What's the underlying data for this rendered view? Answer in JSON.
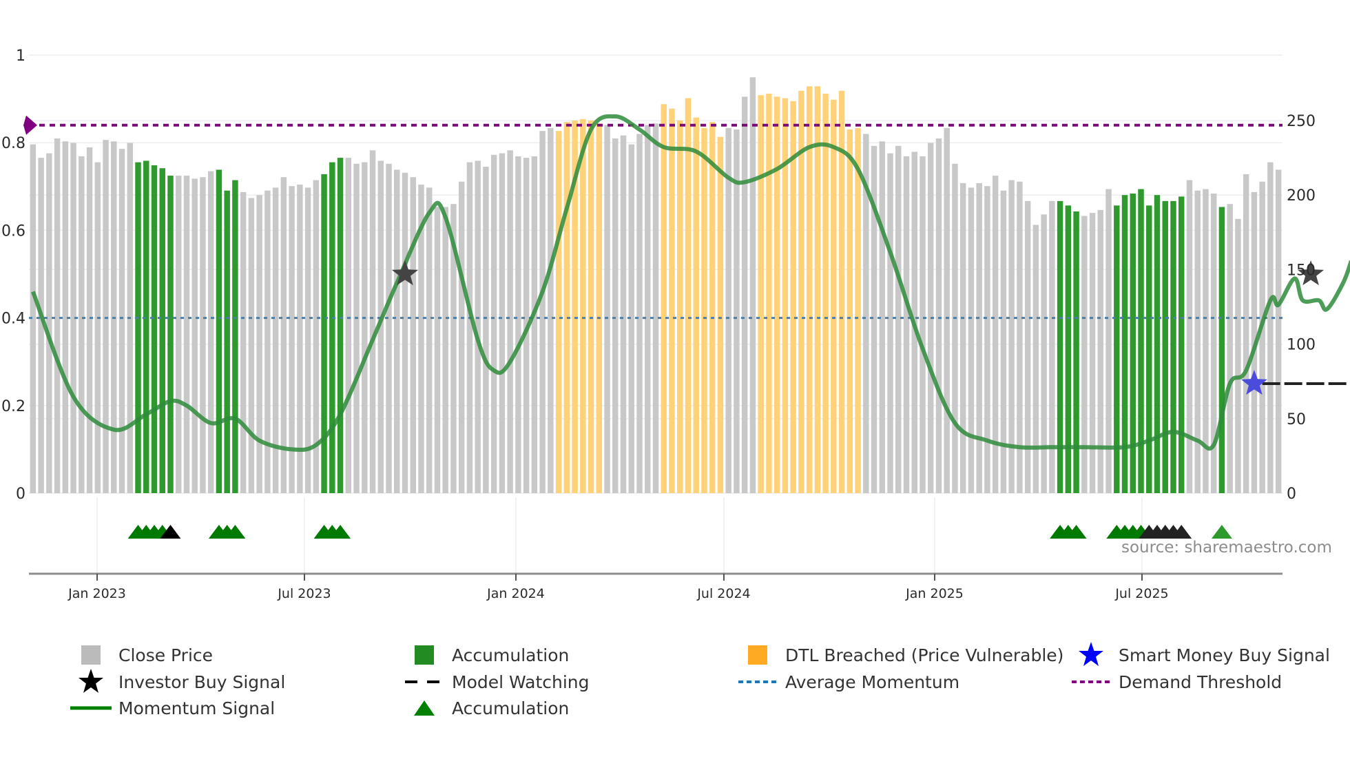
{
  "chart_data": {
    "type": "bar",
    "title": "",
    "xlabel": "",
    "ylabel_left": "",
    "ylabel_right": "",
    "left_axis": {
      "ticks": [
        0,
        0.2,
        0.4,
        0.6,
        0.8,
        1
      ],
      "tick_labels": [
        "0",
        "0.2",
        "0.4",
        "0.6",
        "0.8",
        "1"
      ],
      "range": [
        0,
        1
      ]
    },
    "right_axis": {
      "ticks": [
        0,
        50,
        100,
        150,
        200,
        250
      ],
      "tick_labels": [
        "0",
        "50",
        "100",
        "150",
        "200",
        "250"
      ],
      "range": [
        0,
        270
      ]
    },
    "x_ticks": [
      "Jan 2023",
      "Jul 2023",
      "Jan 2024",
      "Jul 2024",
      "Jan 2025",
      "Jul 2025"
    ],
    "x_range": [
      "Nov 2022",
      "Oct 2025"
    ],
    "grid": true,
    "legend_position": "bottom",
    "close_price_weekly": [
      234,
      225,
      228,
      238,
      236,
      235,
      226,
      232,
      222,
      237,
      236,
      231,
      235,
      222,
      223,
      220,
      218,
      213,
      213,
      213,
      211,
      212,
      216,
      217,
      203,
      210,
      202,
      198,
      200,
      203,
      205,
      212,
      206,
      207,
      205,
      210,
      214,
      222,
      225,
      225,
      221,
      222,
      230,
      223,
      221,
      217,
      215,
      212,
      207,
      205,
      192,
      192,
      194,
      209,
      222,
      223,
      219,
      227,
      228,
      230,
      226,
      225,
      226,
      243,
      245,
      243,
      249,
      250,
      251,
      250,
      248,
      247,
      238,
      240,
      234,
      241,
      247,
      248,
      261,
      258,
      250,
      265,
      252,
      245,
      249,
      239,
      245,
      244,
      266,
      279,
      267,
      268,
      266,
      265,
      263,
      270,
      273,
      273,
      268,
      264,
      270,
      244,
      245,
      241,
      233,
      236,
      228,
      233,
      226,
      229,
      226,
      235,
      238,
      245,
      221,
      208,
      205,
      208,
      206,
      213,
      203,
      210,
      209,
      196,
      180,
      187,
      196,
      196,
      193,
      189,
      186,
      188,
      190,
      204,
      193,
      200,
      201,
      204,
      193,
      200,
      196,
      196,
      199,
      210,
      203,
      204,
      201,
      192,
      194,
      184,
      214,
      202,
      209,
      222,
      217
    ],
    "bar_categories": {
      "accumulation_ranges": [
        [
          13,
          17
        ],
        [
          23,
          25
        ],
        [
          36,
          38
        ],
        [
          127,
          129
        ],
        [
          134,
          142
        ],
        [
          147,
          147
        ]
      ],
      "dtl_breached_ranges": [
        [
          65,
          70
        ],
        [
          78,
          85
        ],
        [
          90,
          102
        ]
      ]
    },
    "momentum_signal": [
      [
        0,
        0.46
      ],
      [
        5,
        0.22
      ],
      [
        10,
        0.145
      ],
      [
        14,
        0.18
      ],
      [
        17,
        0.21
      ],
      [
        19,
        0.2
      ],
      [
        22,
        0.16
      ],
      [
        25,
        0.17
      ],
      [
        28,
        0.12
      ],
      [
        32,
        0.1
      ],
      [
        35,
        0.11
      ],
      [
        38,
        0.18
      ],
      [
        42,
        0.35
      ],
      [
        45,
        0.48
      ],
      [
        49,
        0.64
      ],
      [
        51,
        0.63
      ],
      [
        55,
        0.35
      ],
      [
        57,
        0.28
      ],
      [
        59,
        0.3
      ],
      [
        63,
        0.46
      ],
      [
        66,
        0.65
      ],
      [
        69,
        0.83
      ],
      [
        72,
        0.86
      ],
      [
        75,
        0.83
      ],
      [
        78,
        0.79
      ],
      [
        82,
        0.78
      ],
      [
        86,
        0.72
      ],
      [
        88,
        0.71
      ],
      [
        92,
        0.74
      ],
      [
        96,
        0.79
      ],
      [
        99,
        0.79
      ],
      [
        102,
        0.74
      ],
      [
        106,
        0.55
      ],
      [
        110,
        0.33
      ],
      [
        114,
        0.16
      ],
      [
        118,
        0.12
      ],
      [
        122,
        0.105
      ],
      [
        126,
        0.105
      ],
      [
        130,
        0.105
      ],
      [
        135,
        0.105
      ],
      [
        138,
        0.12
      ],
      [
        141,
        0.14
      ],
      [
        144,
        0.12
      ],
      [
        146,
        0.11
      ],
      [
        148,
        0.25
      ],
      [
        150,
        0.28
      ],
      [
        153,
        0.44
      ],
      [
        154,
        0.43
      ],
      [
        156,
        0.49
      ],
      [
        157,
        0.44
      ],
      [
        159,
        0.44
      ],
      [
        160,
        0.42
      ],
      [
        162,
        0.48
      ],
      [
        163,
        0.53
      ]
    ],
    "average_momentum": 0.4,
    "demand_threshold": 0.84,
    "investor_buy_signals": [
      {
        "bar": 46,
        "value": 0.5
      },
      {
        "bar": 158,
        "value": 0.5
      }
    ],
    "smart_money_buy_signals": [
      {
        "bar": 151,
        "value": 0.25
      }
    ],
    "model_watching": {
      "from_bar": 152,
      "to_bar": 165,
      "value": 0.25
    },
    "accumulation_markers": {
      "green": [
        13,
        14,
        15,
        16,
        23,
        24,
        25,
        36,
        37,
        38,
        127,
        128,
        129,
        134,
        135,
        136,
        137,
        147
      ],
      "black": [
        17,
        138,
        139,
        140,
        141,
        142
      ]
    }
  },
  "legend": {
    "items": [
      {
        "label": "Close Price",
        "icon": "square-swatch",
        "color": "#bbbbbb"
      },
      {
        "label": "Accumulation",
        "icon": "square-swatch",
        "color": "#228b22"
      },
      {
        "label": "DTL Breached (Price Vulnerable)",
        "icon": "square-swatch",
        "color": "#ffaa22"
      },
      {
        "label": "Smart Money Buy Signal",
        "icon": "star-icon",
        "color": "#0000ff"
      },
      {
        "label": "Investor Buy Signal",
        "icon": "star-icon",
        "color": "#000000"
      },
      {
        "label": "Model Watching",
        "icon": "dashed-line",
        "color": "#000000"
      },
      {
        "label": "Average Momentum",
        "icon": "dotted-line",
        "color": "#1f77b4"
      },
      {
        "label": "Demand Threshold",
        "icon": "dotted-line",
        "color": "#800080"
      },
      {
        "label": "Momentum Signal",
        "icon": "solid-line",
        "color": "#008000"
      },
      {
        "label": "Accumulation",
        "icon": "triangle-icon",
        "color": "#008000"
      }
    ]
  },
  "source": "source: sharemaestro.com",
  "colors": {
    "close_price": "#c8c8c8",
    "accumulation": "#2e9a2e",
    "dtl_breached": "#ffd27a",
    "momentum": "#2e8b3a",
    "average_momentum": "#4b7fa8",
    "demand_threshold": "#7a0a78",
    "smart_money": "#4b4bdc",
    "investor_star": "#444444"
  }
}
